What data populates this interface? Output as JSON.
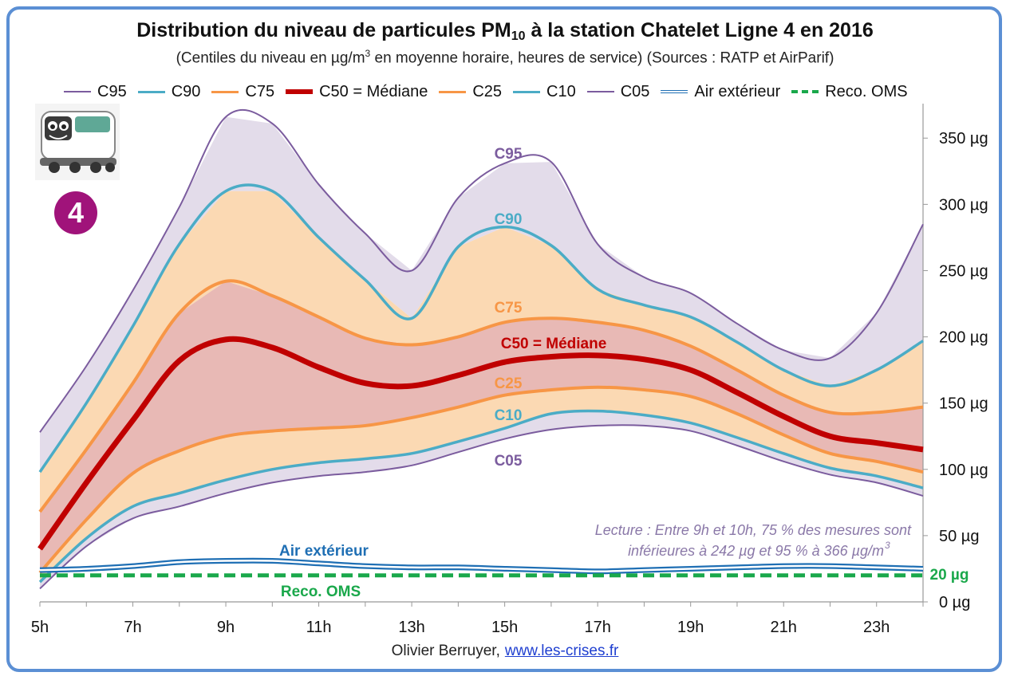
{
  "title": {
    "before": "Distribution du niveau de particules PM",
    "sub": "10",
    "after": " à la station Chatelet Ligne 4 en 2016"
  },
  "subtitle": {
    "before": "(Centiles du niveau en µg/m",
    "sup": "3",
    "after": " en moyenne horaire, heures de service) (Sources : RATP et AirParif)"
  },
  "legend": [
    {
      "label": "C95",
      "color": "#7b5c9e",
      "style": "thin"
    },
    {
      "label": "C90",
      "color": "#4bacc6",
      "style": "medium"
    },
    {
      "label": "C75",
      "color": "#f79646",
      "style": "medium"
    },
    {
      "label": "C50 = Médiane",
      "color": "#c00000",
      "style": "thick"
    },
    {
      "label": "C25",
      "color": "#f79646",
      "style": "medium"
    },
    {
      "label": "C10",
      "color": "#4bacc6",
      "style": "medium"
    },
    {
      "label": "C05",
      "color": "#7b5c9e",
      "style": "thin"
    },
    {
      "label": "Air extérieur",
      "color": "#1f6fb4",
      "style": "double"
    },
    {
      "label": "Reco. OMS",
      "color": "#1aa84b",
      "style": "dashed"
    }
  ],
  "badge": {
    "text": "4",
    "color": "#a0137a"
  },
  "credit": {
    "author": "Olivier Berruyer,",
    "link": "www.les-crises.fr"
  },
  "chart_data": {
    "type": "line",
    "x": [
      5,
      6,
      7,
      8,
      9,
      10,
      11,
      12,
      13,
      14,
      15,
      16,
      17,
      18,
      19,
      20,
      21,
      22,
      23,
      24
    ],
    "xtick_labels": [
      "5h",
      "7h",
      "9h",
      "11h",
      "13h",
      "15h",
      "17h",
      "19h",
      "21h",
      "23h"
    ],
    "xtick_values": [
      5,
      7,
      9,
      11,
      13,
      15,
      17,
      19,
      21,
      23
    ],
    "ytick_labels": [
      "0 µg",
      "50 µg",
      "100 µg",
      "150 µg",
      "200 µg",
      "250 µg",
      "300 µg",
      "350 µg"
    ],
    "ytick_values": [
      0,
      50,
      100,
      150,
      200,
      250,
      300,
      350
    ],
    "ylim": [
      0,
      370
    ],
    "xlim": [
      5,
      24
    ],
    "y_axis_side": "right",
    "series": [
      {
        "name": "C95",
        "color": "#7b5c9e",
        "values": [
          128,
          178,
          235,
          298,
          366,
          361,
          315,
          278,
          250,
          305,
          331,
          332,
          270,
          245,
          233,
          210,
          190,
          184,
          218,
          285
        ]
      },
      {
        "name": "C90",
        "color": "#4bacc6",
        "values": [
          98,
          150,
          208,
          270,
          310,
          310,
          275,
          243,
          214,
          268,
          283,
          269,
          236,
          224,
          215,
          196,
          175,
          163,
          175,
          197
        ]
      },
      {
        "name": "C75",
        "color": "#f79646",
        "values": [
          68,
          115,
          165,
          218,
          242,
          231,
          215,
          199,
          194,
          200,
          211,
          214,
          211,
          205,
          193,
          175,
          156,
          143,
          143,
          147
        ]
      },
      {
        "name": "C50 = Médiane",
        "color": "#c00000",
        "values": [
          40,
          90,
          137,
          182,
          198,
          192,
          177,
          165,
          163,
          171,
          181,
          185,
          186,
          183,
          175,
          158,
          140,
          125,
          120,
          115
        ]
      },
      {
        "name": "C25",
        "color": "#f79646",
        "values": [
          22,
          62,
          97,
          114,
          125,
          129,
          131,
          133,
          139,
          147,
          156,
          160,
          162,
          160,
          155,
          142,
          126,
          112,
          106,
          98
        ]
      },
      {
        "name": "C10",
        "color": "#4bacc6",
        "values": [
          15,
          48,
          72,
          82,
          92,
          100,
          105,
          108,
          112,
          121,
          131,
          142,
          144,
          141,
          135,
          124,
          112,
          101,
          95,
          86
        ]
      },
      {
        "name": "C05",
        "color": "#7b5c9e",
        "values": [
          10,
          42,
          63,
          72,
          82,
          90,
          95,
          98,
          103,
          113,
          123,
          130,
          133,
          133,
          129,
          118,
          106,
          96,
          90,
          80
        ]
      },
      {
        "name": "Air extérieur",
        "color": "#1f6fb4",
        "values": [
          24,
          25,
          27,
          30,
          31,
          31,
          29,
          27,
          26,
          26,
          25,
          24,
          23,
          24,
          25,
          26,
          27,
          27,
          26,
          25
        ]
      },
      {
        "name": "Reco. OMS",
        "color": "#1aa84b",
        "values": [
          20,
          20,
          20,
          20,
          20,
          20,
          20,
          20,
          20,
          20,
          20,
          20,
          20,
          20,
          20,
          20,
          20,
          20,
          20,
          20
        ]
      }
    ],
    "bands": [
      {
        "upper": "C95",
        "lower": "C90",
        "color": "#e3dcea"
      },
      {
        "upper": "C90",
        "lower": "C75",
        "color": "#fbd9b3"
      },
      {
        "upper": "C75",
        "lower": "C25",
        "color": "#e8b9b5"
      },
      {
        "upper": "C25",
        "lower": "C10",
        "color": "#fbd9b3"
      },
      {
        "upper": "C10",
        "lower": "C05",
        "color": "#e3dcea"
      }
    ],
    "inline_labels": [
      {
        "text": "C95",
        "color": "#7b5c9e"
      },
      {
        "text": "C90",
        "color": "#4bacc6"
      },
      {
        "text": "C75",
        "color": "#f79646"
      },
      {
        "text": "C50 = Médiane",
        "color": "#c00000"
      },
      {
        "text": "C25",
        "color": "#f79646"
      },
      {
        "text": "C10",
        "color": "#4bacc6"
      },
      {
        "text": "C05",
        "color": "#7b5c9e"
      },
      {
        "text": "Air extérieur",
        "color": "#1f6fb4"
      },
      {
        "text": "Reco. OMS",
        "color": "#1aa84b"
      },
      {
        "text": "20 µg",
        "color": "#1aa84b"
      }
    ],
    "annotation": {
      "line1": "Lecture :  Entre 9h et 10h, 75 % des mesures sont",
      "line2": "inférieures à 242 µg et 95 % à 366 µg/m",
      "sup": "3",
      "color": "#8a78a8"
    }
  }
}
